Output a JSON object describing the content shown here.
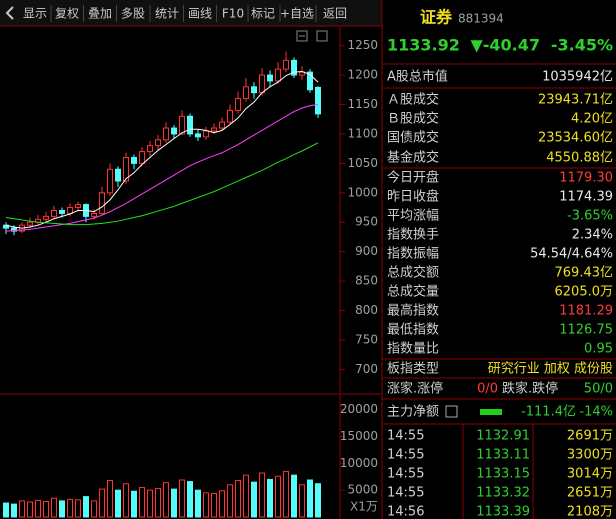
{
  "toolbar": [
    "显示",
    "复权",
    "叠加",
    "多股",
    "统计",
    "画线",
    "F10",
    "标记",
    "+自选",
    "返回"
  ],
  "quote": {
    "name": "证券",
    "code": "881394",
    "price": "1133.92",
    "change": "▼-40.47",
    "change_pct": "-3.45%"
  },
  "stats": [
    {
      "label": "A股总市值",
      "value": "1035942亿",
      "color": "#e8e8e8"
    },
    {
      "label": "Ａ股成交",
      "value": "23943.71亿",
      "color": "#f0e020"
    },
    {
      "label": "Ｂ股成交",
      "value": "4.20亿",
      "color": "#f0e020"
    },
    {
      "label": "国债成交",
      "value": "23534.60亿",
      "color": "#f0e020"
    },
    {
      "label": "基金成交",
      "value": "4550.88亿",
      "color": "#f0e020"
    },
    {
      "label": "今日开盘",
      "value": "1179.30",
      "color": "#ff3c3c"
    },
    {
      "label": "昨日收盘",
      "value": "1174.39",
      "color": "#e8e8e8"
    },
    {
      "label": "平均涨幅",
      "value": "-3.65%",
      "color": "#30d030"
    },
    {
      "label": "指数换手",
      "value": "2.34%",
      "color": "#e8e8e8"
    },
    {
      "label": "指数振幅",
      "value": "54.54/4.64%",
      "color": "#e8e8e8"
    },
    {
      "label": "总成交额",
      "value": "769.43亿",
      "color": "#f0e020"
    },
    {
      "label": "总成交量",
      "value": "6205.0万",
      "color": "#f0e020"
    },
    {
      "label": "最高指数",
      "value": "1181.29",
      "color": "#ff3c3c"
    },
    {
      "label": "最低指数",
      "value": "1126.75",
      "color": "#30d030"
    },
    {
      "label": "指数量比",
      "value": "0.95",
      "color": "#30d030"
    }
  ],
  "sector": {
    "label": "板指类型",
    "value": "研究行业 加权 成份股"
  },
  "breadth": {
    "up_label": "涨家.涨停",
    "up": "0/0",
    "down_label": "跌家.跌停",
    "down": "50/0"
  },
  "main_flow": {
    "label": "主力净额",
    "value": "-111.4亿",
    "pct": "-14%"
  },
  "trades": [
    [
      "14:55",
      "1132.91",
      "2691万"
    ],
    [
      "14:55",
      "1133.11",
      "3300万"
    ],
    [
      "14:55",
      "1133.15",
      "3014万"
    ],
    [
      "14:55",
      "1133.32",
      "2651万"
    ],
    [
      "14:56",
      "1133.39",
      "2108万"
    ]
  ],
  "kline": {
    "type": "candlestick",
    "ylim": [
      660,
      1285
    ],
    "yticks": [
      700,
      750,
      800,
      850,
      900,
      950,
      1000,
      1050,
      1100,
      1150,
      1200,
      1250
    ],
    "up_color": "#ff3232",
    "down_color": "#54fcfc",
    "candles": [
      [
        945,
        950,
        930,
        940
      ],
      [
        940,
        945,
        928,
        935
      ],
      [
        935,
        950,
        932,
        945
      ],
      [
        945,
        958,
        940,
        950
      ],
      [
        950,
        962,
        945,
        955
      ],
      [
        955,
        968,
        950,
        960
      ],
      [
        960,
        978,
        955,
        970
      ],
      [
        970,
        975,
        958,
        965
      ],
      [
        965,
        982,
        960,
        975
      ],
      [
        975,
        985,
        968,
        980
      ],
      [
        980,
        982,
        950,
        960
      ],
      [
        960,
        972,
        955,
        965
      ],
      [
        965,
        1010,
        962,
        1000
      ],
      [
        1000,
        1050,
        995,
        1040
      ],
      [
        1040,
        1045,
        1010,
        1020
      ],
      [
        1020,
        1068,
        1015,
        1060
      ],
      [
        1060,
        1065,
        1040,
        1050
      ],
      [
        1050,
        1078,
        1045,
        1070
      ],
      [
        1070,
        1088,
        1062,
        1080
      ],
      [
        1080,
        1098,
        1072,
        1090
      ],
      [
        1090,
        1120,
        1085,
        1110
      ],
      [
        1110,
        1115,
        1092,
        1100
      ],
      [
        1100,
        1140,
        1098,
        1130
      ],
      [
        1130,
        1135,
        1095,
        1100
      ],
      [
        1100,
        1108,
        1088,
        1095
      ],
      [
        1095,
        1112,
        1090,
        1105
      ],
      [
        1105,
        1118,
        1100,
        1110
      ],
      [
        1110,
        1128,
        1105,
        1120
      ],
      [
        1120,
        1150,
        1115,
        1140
      ],
      [
        1140,
        1172,
        1135,
        1160
      ],
      [
        1160,
        1195,
        1155,
        1180
      ],
      [
        1180,
        1188,
        1160,
        1170
      ],
      [
        1170,
        1212,
        1165,
        1200
      ],
      [
        1200,
        1208,
        1180,
        1190
      ],
      [
        1190,
        1222,
        1185,
        1210
      ],
      [
        1210,
        1240,
        1205,
        1225
      ],
      [
        1225,
        1230,
        1195,
        1200
      ],
      [
        1200,
        1215,
        1192,
        1205
      ],
      [
        1205,
        1210,
        1170,
        1175
      ],
      [
        1179,
        1181,
        1127,
        1134
      ]
    ],
    "ma_lines": [
      {
        "color": "#ffffff",
        "values": [
          945,
          942,
          940,
          942,
          945,
          950,
          956,
          960,
          964,
          970,
          970,
          968,
          976,
          988,
          1005,
          1024,
          1034,
          1048,
          1060,
          1072,
          1082,
          1092,
          1102,
          1108,
          1108,
          1106,
          1102,
          1106,
          1116,
          1127,
          1143,
          1154,
          1170,
          1180,
          1188,
          1199,
          1205,
          1206,
          1201,
          1188
        ]
      },
      {
        "color": "#ff40ff",
        "values": [
          935,
          936,
          937,
          938,
          940,
          942,
          944,
          946,
          948,
          951,
          954,
          957,
          962,
          968,
          975,
          982,
          990,
          998,
          1006,
          1014,
          1022,
          1030,
          1038,
          1046,
          1052,
          1058,
          1063,
          1068,
          1075,
          1082,
          1090,
          1098,
          1106,
          1114,
          1122,
          1130,
          1138,
          1144,
          1148,
          1150
        ]
      },
      {
        "color": "#20e020",
        "values": [
          958,
          956,
          954,
          952,
          950,
          949,
          948,
          947,
          946,
          946,
          946,
          947,
          948,
          950,
          952,
          955,
          958,
          961,
          965,
          969,
          973,
          977,
          982,
          987,
          992,
          997,
          1002,
          1008,
          1014,
          1020,
          1026,
          1032,
          1038,
          1045,
          1052,
          1058,
          1065,
          1071,
          1078,
          1085
        ]
      }
    ],
    "volumes": [
      2600,
      2400,
      3000,
      2800,
      3100,
      2900,
      3500,
      3000,
      3300,
      3200,
      3800,
      3000,
      5200,
      6800,
      5000,
      6200,
      4800,
      5500,
      5000,
      5300,
      6400,
      5200,
      6900,
      6600,
      5000,
      4500,
      4400,
      4900,
      6000,
      6800,
      7800,
      6500,
      8200,
      7000,
      7600,
      8500,
      7800,
      6000,
      6900,
      6205
    ],
    "vol_ylim": [
      0,
      22000
    ],
    "vol_yticks": [
      5000,
      10000,
      15000,
      20000
    ],
    "vol_unit": "X1万"
  }
}
